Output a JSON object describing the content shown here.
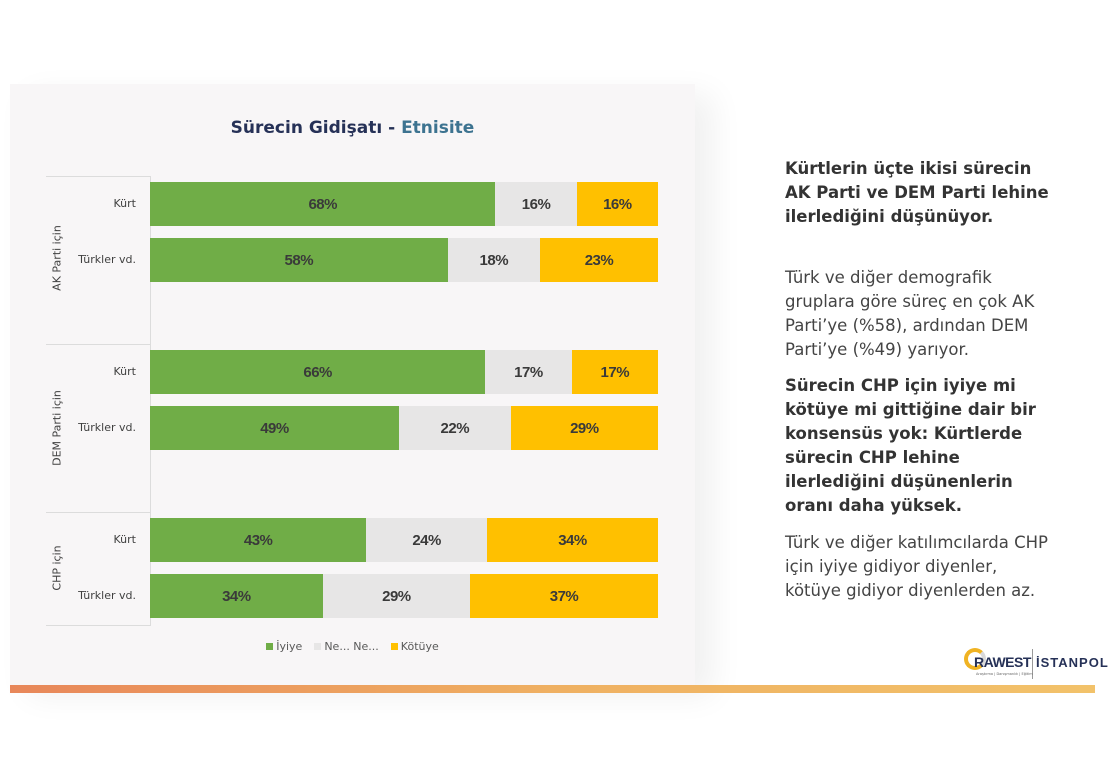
{
  "chart_data": {
    "type": "bar",
    "orientation": "horizontal",
    "stacked": "100%",
    "title": "Sürecin Gidişatı - Etnisite",
    "title_parts": [
      "Sürecin Gidişatı - ",
      "Etnisite"
    ],
    "xlabel": "",
    "ylabel": "",
    "xlim": [
      0,
      100
    ],
    "groups": [
      {
        "label": "AK Parti için",
        "categories": [
          "Kürt",
          "Türkler vd."
        ]
      },
      {
        "label": "DEM Parti için",
        "categories": [
          "Kürt",
          "Türkler vd."
        ]
      },
      {
        "label": "CHP için",
        "categories": [
          "Kürt",
          "Türkler vd."
        ]
      }
    ],
    "categories": [
      "Kürt",
      "Türkler vd.",
      "Kürt",
      "Türkler vd.",
      "Kürt",
      "Türkler vd."
    ],
    "series": [
      {
        "name": "İyiye",
        "color": "#70ad47",
        "values": [
          68,
          58,
          66,
          49,
          43,
          34
        ],
        "labels": [
          "68%",
          "58%",
          "66%",
          "49%",
          "43%",
          "34%"
        ]
      },
      {
        "name": "Ne... Ne...",
        "color": "#e7e6e6",
        "values": [
          16,
          18,
          17,
          22,
          24,
          29
        ],
        "labels": [
          "16%",
          "18%",
          "17%",
          "22%",
          "24%",
          "29%"
        ]
      },
      {
        "name": "Kötüye",
        "color": "#ffc000",
        "values": [
          16,
          23,
          17,
          29,
          34,
          37
        ],
        "labels": [
          "16%",
          "23%",
          "17%",
          "29%",
          "34%",
          "37%"
        ]
      }
    ],
    "legend": {
      "position": "bottom",
      "entries": [
        "İyiye",
        "Ne... Ne...",
        "Kötüye"
      ]
    },
    "grid": false
  },
  "sidebar": {
    "para1": "Kürtlerin üçte ikisi sürecin AK Parti ve DEM Parti lehine ilerlediğini düşünüyor.",
    "para2": "Türk ve diğer demografik gruplara göre süreç en çok AK Parti’ye (%58), ardından DEM Parti’ye (%49) yarıyor.",
    "para3": "Sürecin CHP için iyiye mi kötüye mi gittiğine dair bir konsensüs yok: Kürtlerde sürecin CHP lehine ilerlediğini düşünenlerin oranı daha yüksek.",
    "para4": "Türk ve diğer katılımcılarda CHP için iyiye gidiyor diyenler, kötüye gidiyor diyenlerden az."
  },
  "logo": {
    "brand": "RAWEST",
    "partner": "İSTANPOL",
    "tagline": "Araştırma | Danışmanlık | Eğitim"
  },
  "colors": {
    "title_dark": "#263157",
    "title_accent": "#3d7390",
    "panel_bg": "#f8f6f7"
  }
}
